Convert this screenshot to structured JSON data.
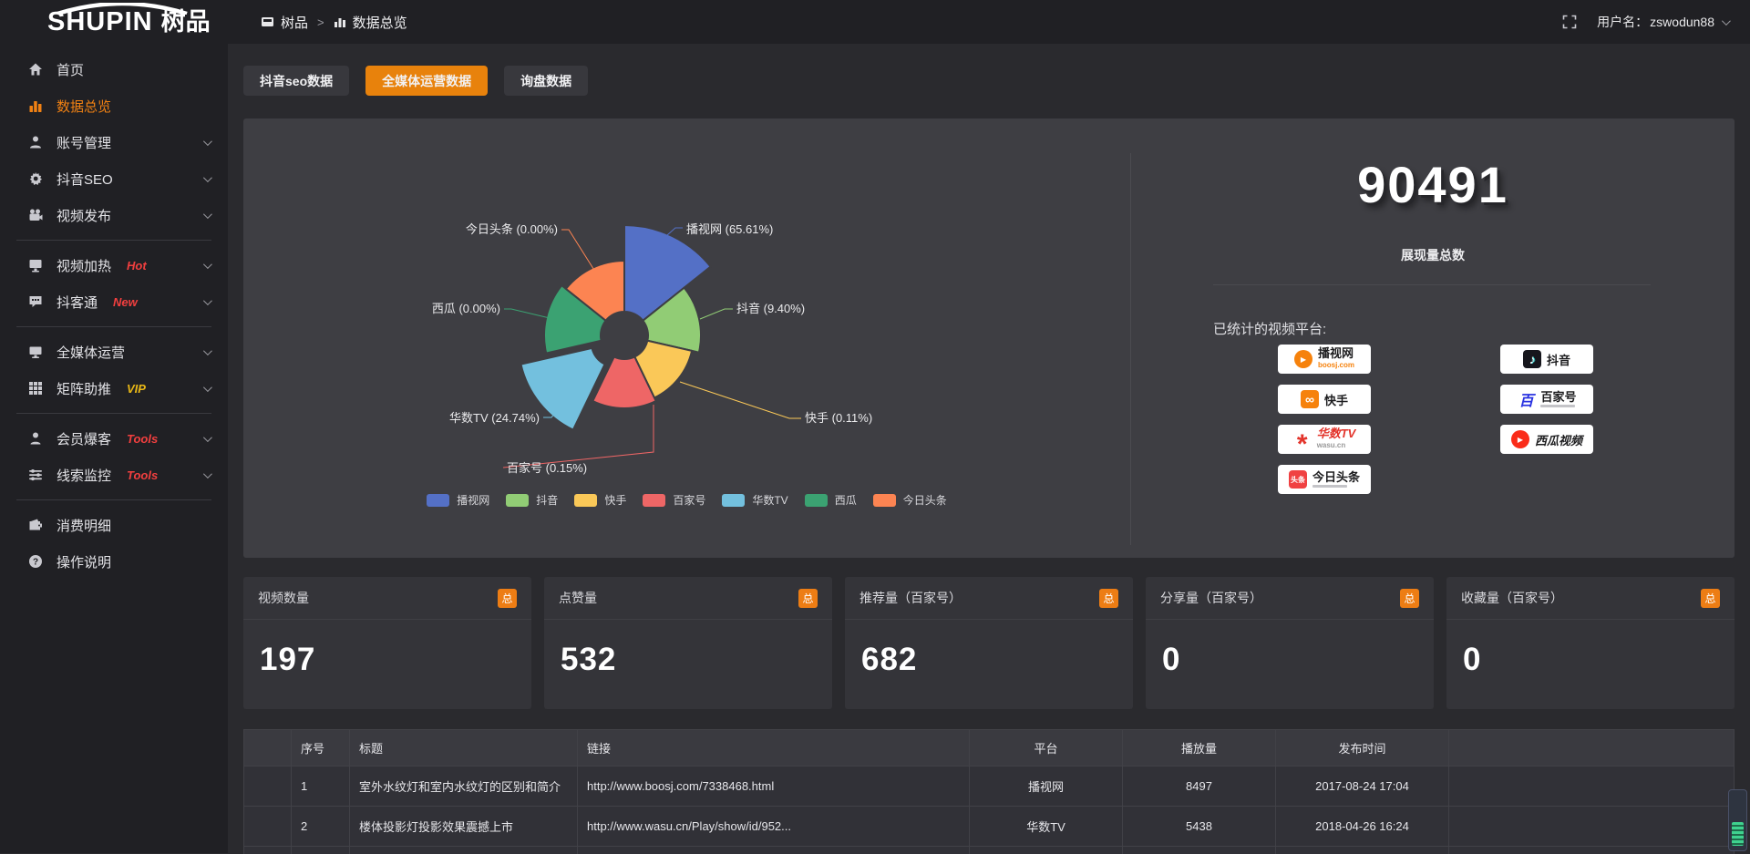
{
  "colors": {
    "accent": "#ED8113",
    "tab_active": "#E8820C",
    "link_orange": "#E0820D",
    "tag_red": "#F23F3F",
    "tag_gold": "#E8B716",
    "scroll_green": "#3FD28F"
  },
  "topbar": {
    "logo_en": "SHUPIN",
    "logo_cn": "树品",
    "breadcrumb": [
      {
        "label": "树品"
      },
      {
        "label": "数据总览"
      }
    ],
    "breadcrumb_sep": ">",
    "user_prefix": "用户名：",
    "username": "zswodun88"
  },
  "sidebar": {
    "items": [
      {
        "label": "首页"
      },
      {
        "label": "数据总览",
        "active": true
      },
      {
        "label": "账号管理",
        "chevron": true
      },
      {
        "label": "抖音SEO",
        "chevron": true
      },
      {
        "label": "视频发布",
        "chevron": true
      },
      {
        "label": "视频加热",
        "tag": "Hot",
        "chevron": true
      },
      {
        "label": "抖客通",
        "tag": "New",
        "chevron": true
      },
      {
        "label": "全媒体运营",
        "chevron": true
      },
      {
        "label": "矩阵助推",
        "tag": "VIP",
        "chevron": true
      },
      {
        "label": "会员爆客",
        "tag": "Tools",
        "chevron": true
      },
      {
        "label": "线索监控",
        "tag": "Tools",
        "chevron": true
      },
      {
        "label": "消费明细"
      },
      {
        "label": "操作说明"
      }
    ]
  },
  "tabs": [
    {
      "label": "抖音seo数据",
      "active": false
    },
    {
      "label": "全媒体运营数据",
      "active": true
    },
    {
      "label": "询盘数据",
      "active": false
    }
  ],
  "chart_data": {
    "type": "pie",
    "variant": "nightingale_rose",
    "labels": [
      "播视网",
      "抖音",
      "快手",
      "百家号",
      "华数TV",
      "西瓜",
      "今日头条"
    ],
    "values": [
      65.61,
      9.4,
      0.11,
      0.15,
      24.74,
      0.0,
      0.0
    ],
    "value_unit": "percent",
    "display_labels": [
      "播视网 (65.61%)",
      "抖音 (9.40%)",
      "快手 (0.11%)",
      "百家号 (0.15%)",
      "华数TV (24.74%)",
      "西瓜 (0.00%)",
      "今日头条 (0.00%)"
    ],
    "colors": [
      "#5470C6",
      "#91CC75",
      "#FAC858",
      "#EE6666",
      "#73C0DE",
      "#3BA272",
      "#FC8452"
    ],
    "legend": {
      "position": "bottom",
      "items": [
        "播视网",
        "抖音",
        "快手",
        "百家号",
        "华数TV",
        "西瓜",
        "今日头条"
      ]
    },
    "highlighted_slice": "华数TV"
  },
  "summary": {
    "total_value": "90491",
    "total_label": "展现量总数",
    "platforms_label": "已统计的视频平台:",
    "platforms": [
      {
        "name": "播视网",
        "sub": "boosj.com"
      },
      {
        "name": "抖音"
      },
      {
        "name": "快手"
      },
      {
        "name": "百家号"
      },
      {
        "name": "华数TV",
        "sub": "wasu.cn"
      },
      {
        "name": "西瓜视频"
      },
      {
        "name": "今日头条"
      }
    ]
  },
  "stat_cards": [
    {
      "title": "视频数量",
      "badge": "总",
      "value": "197"
    },
    {
      "title": "点赞量",
      "badge": "总",
      "value": "532"
    },
    {
      "title": "推荐量（百家号）",
      "badge": "总",
      "value": "682"
    },
    {
      "title": "分享量（百家号）",
      "badge": "总",
      "value": "0"
    },
    {
      "title": "收藏量（百家号）",
      "badge": "总",
      "value": "0"
    }
  ],
  "table": {
    "headers": [
      "序号",
      "标题",
      "链接",
      "平台",
      "播放量",
      "发布时间"
    ],
    "rows": [
      {
        "index": "1",
        "title": "室外水纹灯和室内水纹灯的区别和简介",
        "link": "http://www.boosj.com/7338468.html",
        "platform": "播视网",
        "plays": "8497",
        "time": "2017-08-24 17:04"
      },
      {
        "index": "2",
        "title": "楼体投影灯投影效果震撼上市",
        "link": "http://www.wasu.cn/Play/show/id/952...",
        "platform": "华数TV",
        "plays": "5438",
        "time": "2018-04-26 16:24"
      }
    ]
  }
}
